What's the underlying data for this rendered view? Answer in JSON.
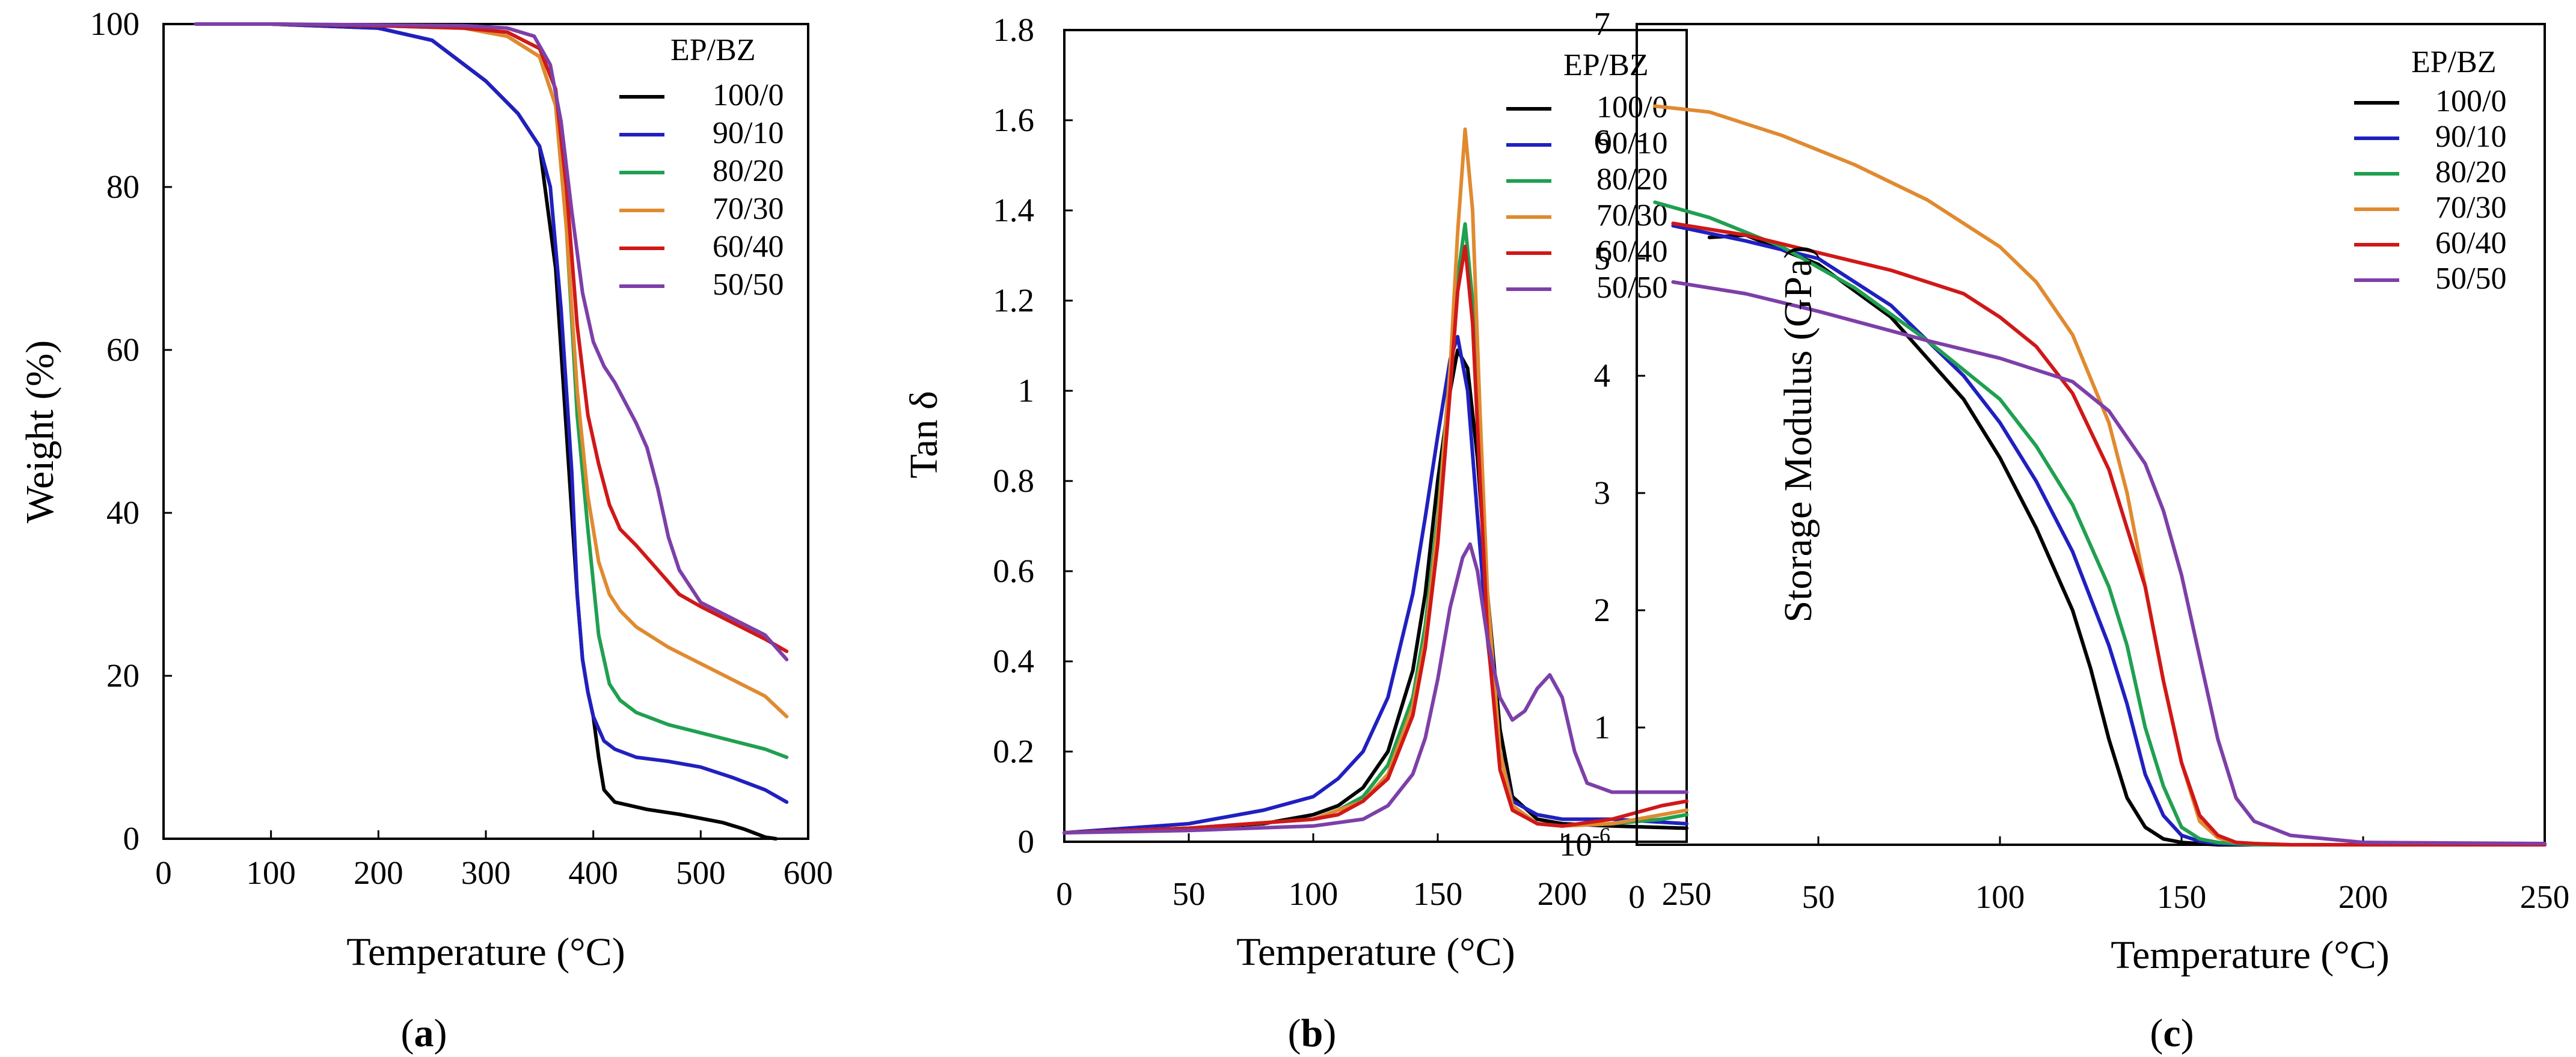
{
  "colors": {
    "100/0": "#000000",
    "90/10": "#2020c0",
    "80/20": "#20a050",
    "70/30": "#e08a30",
    "60/40": "#d01818",
    "50/50": "#7d3fa8"
  },
  "chart_data": [
    {
      "type": "line",
      "caption_open": "(",
      "caption_letter": "a",
      "caption_close": ")",
      "xlabel": "Temperature (°C)",
      "ylabel": "Weight (%)",
      "xlim": [
        0,
        600
      ],
      "ylim": [
        0,
        100
      ],
      "xticks": [
        "0",
        "100",
        "200",
        "300",
        "400",
        "500",
        "600"
      ],
      "yticks": [
        "0",
        "20",
        "40",
        "60",
        "80",
        "100"
      ],
      "legend_title": "EP/BZ",
      "series": [
        {
          "name": "100/0",
          "x": [
            30,
            100,
            200,
            250,
            300,
            330,
            350,
            365,
            375,
            380,
            385,
            390,
            395,
            400,
            405,
            410,
            420,
            450,
            480,
            500,
            520,
            540,
            560,
            570
          ],
          "y": [
            100,
            100,
            99.5,
            98,
            93,
            89,
            85,
            70,
            50,
            40,
            30,
            22,
            18,
            15,
            10,
            6,
            4.5,
            3.6,
            3,
            2.5,
            2,
            1.2,
            0.2,
            0
          ]
        },
        {
          "name": "90/10",
          "x": [
            30,
            100,
            200,
            250,
            300,
            330,
            350,
            360,
            370,
            380,
            385,
            390,
            395,
            400,
            410,
            420,
            440,
            470,
            500,
            530,
            560,
            580
          ],
          "y": [
            100,
            100,
            99.5,
            98,
            93,
            89,
            85,
            80,
            65,
            45,
            30,
            22,
            18,
            15,
            12,
            11,
            10,
            9.5,
            8.8,
            7.5,
            6,
            4.5
          ]
        },
        {
          "name": "80/20",
          "x": [
            30,
            100,
            200,
            280,
            320,
            350,
            365,
            375,
            385,
            395,
            405,
            415,
            425,
            440,
            470,
            500,
            530,
            560,
            580
          ],
          "y": [
            100,
            100,
            99.8,
            99.5,
            98.5,
            96,
            90,
            75,
            52,
            38,
            25,
            19,
            17,
            15.5,
            14,
            13,
            12,
            11,
            10
          ]
        },
        {
          "name": "70/30",
          "x": [
            30,
            100,
            200,
            280,
            320,
            350,
            365,
            375,
            385,
            395,
            405,
            415,
            425,
            440,
            470,
            500,
            530,
            560,
            580
          ],
          "y": [
            100,
            100,
            99.8,
            99.5,
            98.5,
            96,
            90,
            75,
            55,
            42,
            34,
            30,
            28,
            26,
            23.5,
            21.5,
            19.5,
            17.5,
            15
          ]
        },
        {
          "name": "60/40",
          "x": [
            30,
            100,
            200,
            280,
            320,
            350,
            365,
            375,
            385,
            395,
            405,
            415,
            425,
            440,
            460,
            480,
            500,
            530,
            560,
            580
          ],
          "y": [
            100,
            100,
            99.8,
            99.5,
            99,
            97,
            92,
            80,
            63,
            52,
            46,
            41,
            38,
            36,
            33,
            30,
            28.5,
            26.5,
            24.5,
            23
          ]
        },
        {
          "name": "50/50",
          "x": [
            30,
            100,
            200,
            280,
            320,
            345,
            360,
            370,
            380,
            390,
            400,
            410,
            420,
            430,
            440,
            450,
            460,
            470,
            480,
            500,
            530,
            560,
            580
          ],
          "y": [
            100,
            100,
            99.9,
            99.8,
            99.5,
            98.5,
            95,
            88,
            77,
            67,
            61,
            58,
            56,
            53.5,
            51,
            48,
            43,
            37,
            33,
            29,
            27,
            25,
            22
          ]
        }
      ]
    },
    {
      "type": "line",
      "caption_open": "(",
      "caption_letter": "b",
      "caption_close": ")",
      "xlabel": "Temperature (°C)",
      "ylabel": "Tan δ",
      "xlim": [
        0,
        250
      ],
      "ylim": [
        0,
        1.8
      ],
      "xticks": [
        "0",
        "50",
        "100",
        "150",
        "200",
        "250"
      ],
      "yticks": [
        "0",
        "0.2",
        "0.4",
        "0.6",
        "0.8",
        "1",
        "1.2",
        "1.4",
        "1.6",
        "1.8"
      ],
      "legend_title": "EP/BZ",
      "series": [
        {
          "name": "100/0",
          "x": [
            0,
            50,
            80,
            100,
            110,
            120,
            130,
            140,
            145,
            150,
            155,
            158,
            162,
            166,
            170,
            175,
            180,
            190,
            200,
            220,
            250
          ],
          "y": [
            0.02,
            0.03,
            0.04,
            0.06,
            0.08,
            0.12,
            0.2,
            0.38,
            0.55,
            0.8,
            1.0,
            1.09,
            1.05,
            0.85,
            0.55,
            0.25,
            0.1,
            0.05,
            0.04,
            0.035,
            0.03
          ]
        },
        {
          "name": "90/10",
          "x": [
            0,
            50,
            80,
            100,
            110,
            120,
            130,
            140,
            145,
            150,
            155,
            158,
            162,
            166,
            170,
            175,
            180,
            190,
            200,
            220,
            250
          ],
          "y": [
            0.02,
            0.04,
            0.07,
            0.1,
            0.14,
            0.2,
            0.32,
            0.55,
            0.72,
            0.9,
            1.07,
            1.12,
            1.0,
            0.72,
            0.45,
            0.2,
            0.09,
            0.06,
            0.05,
            0.05,
            0.04
          ]
        },
        {
          "name": "80/20",
          "x": [
            0,
            50,
            100,
            110,
            120,
            130,
            140,
            145,
            150,
            155,
            158,
            161,
            164,
            167,
            170,
            175,
            180,
            190,
            200,
            220,
            240,
            250
          ],
          "y": [
            0.02,
            0.03,
            0.05,
            0.07,
            0.1,
            0.17,
            0.32,
            0.48,
            0.72,
            1.05,
            1.25,
            1.37,
            1.2,
            0.85,
            0.5,
            0.2,
            0.08,
            0.04,
            0.035,
            0.04,
            0.05,
            0.06
          ]
        },
        {
          "name": "70/30",
          "x": [
            0,
            50,
            100,
            110,
            120,
            130,
            140,
            145,
            150,
            155,
            158,
            161,
            164,
            167,
            170,
            175,
            180,
            190,
            200,
            220,
            240,
            250
          ],
          "y": [
            0.02,
            0.03,
            0.05,
            0.07,
            0.09,
            0.15,
            0.3,
            0.45,
            0.7,
            1.05,
            1.35,
            1.58,
            1.4,
            0.95,
            0.55,
            0.2,
            0.08,
            0.04,
            0.035,
            0.04,
            0.06,
            0.07
          ]
        },
        {
          "name": "60/40",
          "x": [
            0,
            50,
            100,
            110,
            120,
            130,
            140,
            145,
            150,
            155,
            158,
            161,
            164,
            167,
            170,
            175,
            180,
            190,
            200,
            220,
            240,
            250
          ],
          "y": [
            0.02,
            0.03,
            0.05,
            0.06,
            0.09,
            0.14,
            0.28,
            0.43,
            0.66,
            1.0,
            1.22,
            1.32,
            1.15,
            0.8,
            0.46,
            0.16,
            0.07,
            0.04,
            0.035,
            0.05,
            0.08,
            0.09
          ]
        },
        {
          "name": "50/50",
          "x": [
            0,
            50,
            100,
            120,
            130,
            140,
            145,
            150,
            155,
            160,
            163,
            166,
            170,
            175,
            180,
            185,
            190,
            195,
            200,
            205,
            210,
            220,
            235,
            250
          ],
          "y": [
            0.02,
            0.025,
            0.035,
            0.05,
            0.08,
            0.15,
            0.23,
            0.36,
            0.52,
            0.63,
            0.66,
            0.6,
            0.45,
            0.32,
            0.27,
            0.29,
            0.34,
            0.37,
            0.32,
            0.2,
            0.13,
            0.11,
            0.11,
            0.11
          ]
        }
      ]
    },
    {
      "type": "line",
      "caption_open": "(",
      "caption_letter": "c",
      "caption_close": ")",
      "xlabel": "Temperature (°C)",
      "ylabel": "Storage Modulus (GPa)",
      "xlim": [
        0,
        250
      ],
      "ylim": [
        0,
        7
      ],
      "xticks": [
        "0",
        "50",
        "100",
        "150",
        "200",
        "250"
      ],
      "yticks": [
        "10-6",
        "1",
        "2",
        "3",
        "4",
        "5",
        "6",
        "7"
      ],
      "ytick0_base": "10",
      "ytick0_exp": "-6",
      "legend_title": "EP/BZ",
      "series": [
        {
          "name": "100/0",
          "x": [
            20,
            30,
            50,
            70,
            90,
            100,
            110,
            120,
            125,
            130,
            135,
            140,
            145,
            150,
            160,
            250
          ],
          "y": [
            5.18,
            5.2,
            4.95,
            4.5,
            3.8,
            3.3,
            2.7,
            2.0,
            1.5,
            0.9,
            0.4,
            0.15,
            0.05,
            0.02,
            0,
            0
          ]
        },
        {
          "name": "90/10",
          "x": [
            10,
            30,
            50,
            70,
            90,
            100,
            110,
            120,
            130,
            135,
            140,
            145,
            150,
            155,
            160,
            170,
            250
          ],
          "y": [
            5.28,
            5.15,
            5.0,
            4.6,
            4.0,
            3.6,
            3.1,
            2.5,
            1.7,
            1.2,
            0.6,
            0.25,
            0.08,
            0.03,
            0.01,
            0,
            0
          ]
        },
        {
          "name": "80/20",
          "x": [
            5,
            20,
            40,
            60,
            80,
            100,
            110,
            120,
            130,
            135,
            140,
            145,
            150,
            155,
            160,
            170,
            250
          ],
          "y": [
            5.48,
            5.35,
            5.1,
            4.75,
            4.3,
            3.8,
            3.4,
            2.9,
            2.2,
            1.7,
            1.0,
            0.5,
            0.15,
            0.05,
            0.02,
            0,
            0
          ]
        },
        {
          "name": "70/30",
          "x": [
            5,
            20,
            40,
            60,
            80,
            100,
            110,
            120,
            130,
            135,
            140,
            145,
            150,
            155,
            160,
            165,
            170,
            180,
            250
          ],
          "y": [
            6.3,
            6.25,
            6.05,
            5.8,
            5.5,
            5.1,
            4.8,
            4.35,
            3.6,
            3.0,
            2.2,
            1.4,
            0.7,
            0.2,
            0.06,
            0.02,
            0.01,
            0,
            0
          ]
        },
        {
          "name": "60/40",
          "x": [
            10,
            30,
            50,
            70,
            90,
            100,
            110,
            120,
            130,
            140,
            145,
            150,
            155,
            160,
            165,
            170,
            180,
            250
          ],
          "y": [
            5.3,
            5.2,
            5.05,
            4.9,
            4.7,
            4.5,
            4.25,
            3.85,
            3.2,
            2.2,
            1.4,
            0.7,
            0.25,
            0.08,
            0.02,
            0.01,
            0,
            0
          ]
        },
        {
          "name": "50/50",
          "x": [
            10,
            30,
            50,
            80,
            100,
            120,
            130,
            140,
            145,
            150,
            155,
            160,
            165,
            170,
            180,
            200,
            250
          ],
          "y": [
            4.8,
            4.7,
            4.55,
            4.3,
            4.15,
            3.95,
            3.7,
            3.25,
            2.85,
            2.3,
            1.6,
            0.9,
            0.4,
            0.2,
            0.08,
            0.02,
            0.01
          ]
        }
      ]
    }
  ]
}
